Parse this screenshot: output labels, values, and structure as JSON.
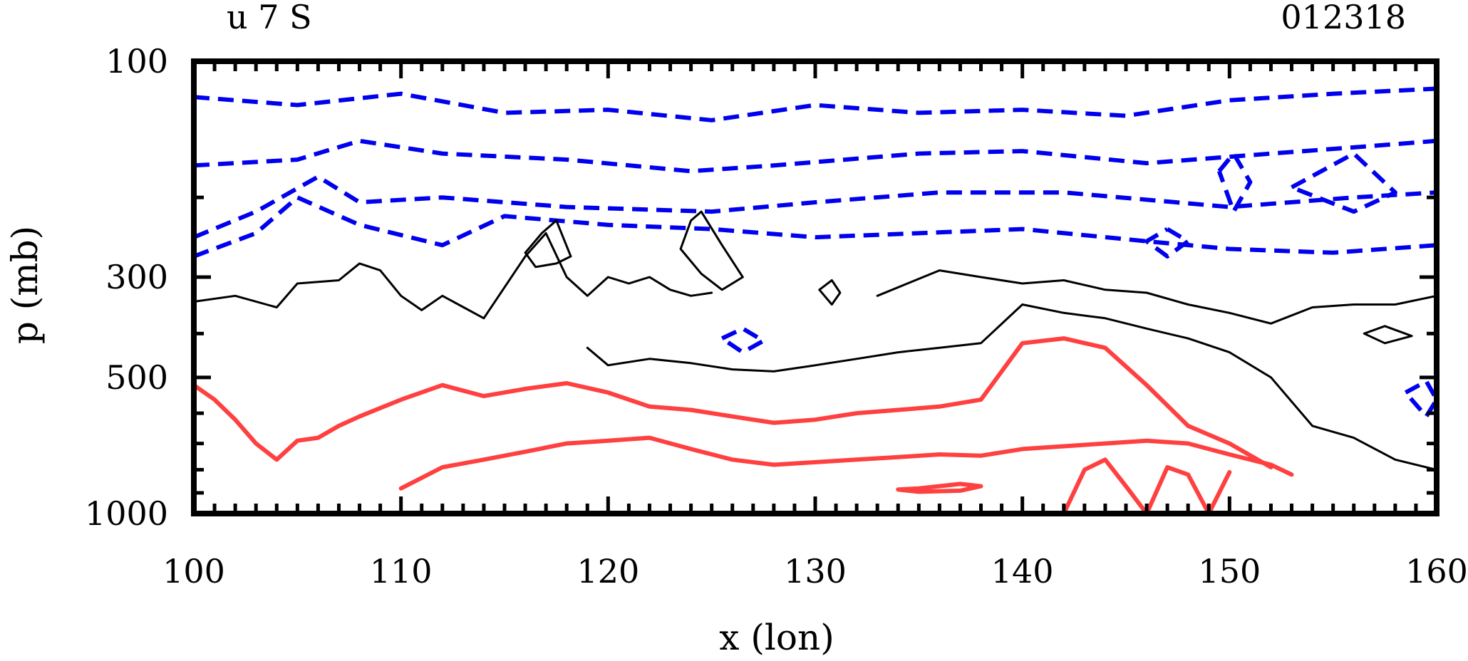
{
  "header": {
    "left_label": "u 7 S",
    "right_label": "012318"
  },
  "chart_data": {
    "type": "contour",
    "xlabel": "x (lon)",
    "ylabel": "p (mb)",
    "xlim": [
      100,
      160
    ],
    "ylim": [
      1000,
      100
    ],
    "y_scale": "log",
    "x_ticks": [
      100,
      110,
      120,
      130,
      140,
      150,
      160
    ],
    "x_tick_labels": [
      "100",
      "110",
      "120",
      "130",
      "140",
      "150",
      "160"
    ],
    "y_ticks": [
      100,
      300,
      500,
      1000
    ],
    "y_tick_labels": [
      "100",
      "300",
      "500",
      "1000"
    ],
    "grid": false,
    "series": [
      {
        "color": "#0000ee",
        "style": "dashed",
        "contours": [
          {
            "x": [
              100,
              105,
              110,
              115,
              120,
              125,
              130,
              135,
              140,
              145,
              150,
              155,
              160
            ],
            "y": [
              120,
              125,
              118,
              130,
              128,
              135,
              125,
              130,
              128,
              132,
              122,
              118,
              115
            ]
          },
          {
            "x": [
              100,
              105,
              108,
              112,
              118,
              124,
              128,
              135,
              140,
              146,
              152,
              156,
              160
            ],
            "y": [
              170,
              165,
              150,
              160,
              165,
              175,
              170,
              160,
              158,
              168,
              160,
              155,
              150
            ]
          },
          {
            "x": [
              100,
              103,
              106,
              108,
              112,
              118,
              125,
              130,
              136,
              142,
              150,
              156,
              160
            ],
            "y": [
              245,
              215,
              180,
              205,
              200,
              210,
              215,
              205,
              195,
              195,
              210,
              200,
              195
            ]
          },
          {
            "x": [
              100,
              103,
              105,
              108,
              112,
              115,
              120,
              125,
              130,
              135,
              140,
              146,
              150,
              155,
              160
            ],
            "y": [
              270,
              240,
              200,
              230,
              255,
              220,
              230,
              235,
              245,
              240,
              235,
              250,
              260,
              265,
              255
            ]
          },
          {
            "x": [
              125.5,
              126.5,
              127.5,
              126.5,
              125.5
            ],
            "y": [
              410,
              390,
              415,
              440,
              410
            ]
          },
          {
            "x": [
              149.5,
              150.2,
              151,
              150.2,
              149.5
            ],
            "y": [
              175,
              160,
              185,
              215,
              175
            ]
          },
          {
            "x": [
              153,
              156,
              158,
              156,
              153
            ],
            "y": [
              190,
              160,
              195,
              215,
              190
            ]
          },
          {
            "x": [
              147,
              148,
              147,
              146,
              147
            ],
            "y": [
              235,
              250,
              270,
              250,
              235
            ]
          },
          {
            "x": [
              158.5,
              159.5,
              160,
              159.5,
              158.5
            ],
            "y": [
              540,
              510,
              560,
              610,
              540
            ]
          }
        ]
      },
      {
        "color": "#000000",
        "style": "solid",
        "contours": [
          {
            "x": [
              100,
              102,
              104,
              105,
              107,
              108,
              109,
              110,
              111,
              112,
              114,
              116,
              117,
              118,
              119,
              120,
              121,
              122,
              123,
              124,
              125
            ],
            "y": [
              340,
              330,
              350,
              310,
              305,
              280,
              290,
              330,
              355,
              330,
              370,
              270,
              240,
              300,
              330,
              300,
              310,
              300,
              320,
              330,
              325
            ]
          },
          {
            "x": [
              119,
              120,
              122,
              124,
              126,
              128,
              130,
              132,
              134,
              136,
              138,
              140,
              142,
              144,
              146,
              148,
              150,
              152,
              154,
              156,
              158,
              160
            ],
            "y": [
              430,
              470,
              455,
              465,
              480,
              485,
              470,
              455,
              440,
              430,
              420,
              345,
              360,
              370,
              390,
              410,
              440,
              500,
              640,
              680,
              760,
              800
            ]
          },
          {
            "x": [
              133,
              136,
              138,
              140,
              142,
              144,
              146,
              148,
              150,
              152,
              154,
              156,
              158,
              160
            ],
            "y": [
              330,
              290,
              300,
              310,
              305,
              320,
              325,
              345,
              360,
              380,
              350,
              345,
              345,
              330
            ]
          },
          {
            "x": [
              123.5,
              124,
              124.5,
              125.5,
              126.5,
              125.5,
              124.5,
              123.5
            ],
            "y": [
              260,
              225,
              215,
              255,
              300,
              320,
              295,
              260
            ]
          },
          {
            "x": [
              116,
              116.8,
              117.5,
              118.2,
              117.5,
              116.5,
              116
            ],
            "y": [
              265,
              240,
              225,
              270,
              280,
              285,
              265
            ]
          },
          {
            "x": [
              130.2,
              130.8,
              131.2,
              130.8,
              130.2
            ],
            "y": [
              320,
              305,
              325,
              345,
              320
            ]
          },
          {
            "x": [
              156.5,
              157.5,
              158.8,
              157.5,
              156.5
            ],
            "y": [
              400,
              385,
              405,
              420,
              400
            ]
          }
        ]
      },
      {
        "color": "#ff4040",
        "style": "solid",
        "contours": [
          {
            "x": [
              100,
              101,
              102,
              103,
              104,
              105,
              106,
              107,
              108,
              110,
              112,
              114,
              116,
              118,
              120,
              122,
              124,
              126,
              128,
              130,
              132,
              134,
              136,
              138,
              140,
              142,
              144,
              146,
              148,
              150,
              152
            ],
            "y": [
              520,
              560,
              620,
              700,
              760,
              690,
              680,
              640,
              610,
              560,
              520,
              550,
              530,
              515,
              540,
              580,
              590,
              610,
              630,
              620,
              600,
              590,
              580,
              560,
              420,
              410,
              430,
              520,
              640,
              700,
              790
            ]
          },
          {
            "x": [
              110,
              112,
              114,
              116,
              118,
              120,
              122,
              124,
              126,
              128,
              130,
              132,
              134,
              136,
              138,
              140,
              142,
              144,
              146,
              148,
              150,
              152,
              153
            ],
            "y": [
              880,
              790,
              760,
              730,
              700,
              690,
              680,
              720,
              760,
              780,
              770,
              760,
              750,
              740,
              745,
              720,
              710,
              700,
              690,
              700,
              740,
              780,
              820
            ]
          },
          {
            "x": [
              135,
              137,
              138,
              137,
              135,
              134,
              135
            ],
            "y": [
              880,
              860,
              870,
              890,
              895,
              885,
              880
            ]
          },
          {
            "x": [
              142,
              143,
              144,
              145,
              146,
              147,
              148,
              149,
              150
            ],
            "y": [
              1000,
              800,
              760,
              870,
              1000,
              790,
              820,
              1000,
              810
            ]
          }
        ]
      }
    ]
  }
}
